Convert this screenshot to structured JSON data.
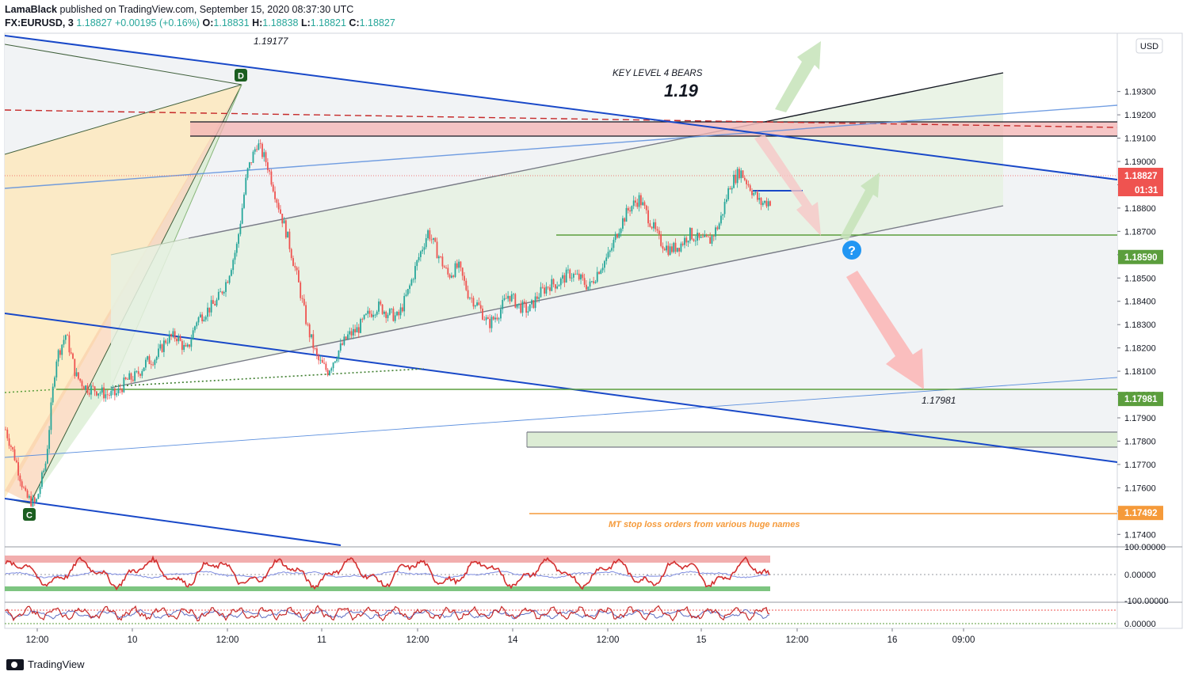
{
  "header": {
    "author": "LamaBlack",
    "published_text": "published on TradingView.com, September 15, 2020 08:37:30 UTC",
    "symbol": "FX:EURUSD, 3",
    "last": "1.18827",
    "change": "+0.00195 (+0.16%)",
    "o_label": "O:",
    "o": "1.18831",
    "h_label": "H:",
    "h": "1.18838",
    "l_label": "L:",
    "l": "1.18821",
    "c_label": "C:",
    "c": "1.18827"
  },
  "currency_button": "USD",
  "footer_brand": "TradingView",
  "colors": {
    "up": "#26a69a",
    "down": "#ef5350",
    "blue_line": "#1848c8",
    "green_line": "#5b9e3d",
    "orange_line": "#f59a3a",
    "red_zone": "#ef9a9a"
  },
  "chart_data": {
    "type": "candlestick",
    "symbol": "EURUSD",
    "timeframe": "3",
    "ylim": [
      1.1735,
      1.1955
    ],
    "price_ticks": [
      "1.17400",
      "1.17500",
      "1.17600",
      "1.17700",
      "1.17800",
      "1.17900",
      "1.18000",
      "1.18100",
      "1.18200",
      "1.18300",
      "1.18400",
      "1.18500",
      "1.18600",
      "1.18700",
      "1.18800",
      "1.18900",
      "1.19000",
      "1.19100",
      "1.19200",
      "1.19300"
    ],
    "time_ticks": [
      "12:00",
      "10",
      "12:00",
      "11",
      "12:00",
      "14",
      "12:00",
      "15",
      "12:00",
      "16",
      "09:00"
    ],
    "current_price": "1.18827",
    "countdown": "01:31",
    "price_levels": [
      {
        "label": "1.18590",
        "value": 1.1859,
        "color": "#5b9e3d"
      },
      {
        "label": "1.17981",
        "value": 1.17981,
        "color": "#5b9e3d"
      },
      {
        "label": "1.17492",
        "value": 1.17492,
        "color": "#f59a3a"
      }
    ],
    "price_path": [
      [
        0,
        1.1785
      ],
      [
        2,
        1.1772
      ],
      [
        4,
        1.1756
      ],
      [
        6,
        1.1753
      ],
      [
        8,
        1.1771
      ],
      [
        10,
        1.1815
      ],
      [
        12,
        1.1826
      ],
      [
        14,
        1.1808
      ],
      [
        16,
        1.1803
      ],
      [
        18,
        1.1802
      ],
      [
        20,
        1.18
      ],
      [
        22,
        1.18
      ],
      [
        24,
        1.1806
      ],
      [
        26,
        1.1808
      ],
      [
        28,
        1.1814
      ],
      [
        30,
        1.1816
      ],
      [
        32,
        1.1824
      ],
      [
        34,
        1.1825
      ],
      [
        36,
        1.1818
      ],
      [
        38,
        1.1832
      ],
      [
        40,
        1.1836
      ],
      [
        42,
        1.184
      ],
      [
        44,
        1.1849
      ],
      [
        46,
        1.1864
      ],
      [
        48,
        1.1895
      ],
      [
        50,
        1.1908
      ],
      [
        52,
        1.1899
      ],
      [
        54,
        1.1883
      ],
      [
        56,
        1.1868
      ],
      [
        58,
        1.185
      ],
      [
        60,
        1.1829
      ],
      [
        62,
        1.1815
      ],
      [
        64,
        1.181
      ],
      [
        66,
        1.1818
      ],
      [
        68,
        1.1825
      ],
      [
        70,
        1.1828
      ],
      [
        72,
        1.1834
      ],
      [
        74,
        1.1838
      ],
      [
        76,
        1.1835
      ],
      [
        78,
        1.1833
      ],
      [
        80,
        1.1844
      ],
      [
        82,
        1.1858
      ],
      [
        84,
        1.187
      ],
      [
        86,
        1.186
      ],
      [
        88,
        1.1851
      ],
      [
        90,
        1.1855
      ],
      [
        92,
        1.1843
      ],
      [
        94,
        1.1838
      ],
      [
        96,
        1.183
      ],
      [
        98,
        1.1835
      ],
      [
        100,
        1.1843
      ],
      [
        102,
        1.1838
      ],
      [
        104,
        1.1836
      ],
      [
        106,
        1.1843
      ],
      [
        108,
        1.1847
      ],
      [
        110,
        1.1848
      ],
      [
        112,
        1.1852
      ],
      [
        114,
        1.185
      ],
      [
        116,
        1.1846
      ],
      [
        118,
        1.1854
      ],
      [
        120,
        1.186
      ],
      [
        122,
        1.1872
      ],
      [
        124,
        1.188
      ],
      [
        126,
        1.1884
      ],
      [
        128,
        1.1875
      ],
      [
        130,
        1.1866
      ],
      [
        132,
        1.1862
      ],
      [
        134,
        1.1864
      ],
      [
        136,
        1.1869
      ],
      [
        138,
        1.1866
      ],
      [
        140,
        1.1866
      ],
      [
        142,
        1.1874
      ],
      [
        144,
        1.189
      ],
      [
        146,
        1.1896
      ],
      [
        148,
        1.1889
      ],
      [
        150,
        1.1882
      ],
      [
        152,
        1.1883
      ]
    ],
    "annotations": [
      {
        "text": "1.19177",
        "kind": "price_note"
      },
      {
        "text": "KEY LEVEL 4 BEARS",
        "kind": "note"
      },
      {
        "text": "1.19",
        "kind": "note_large"
      },
      {
        "text": "1.17981",
        "kind": "price_note"
      },
      {
        "text": "MT stop loss orders from various huge names",
        "kind": "note_orange"
      },
      {
        "text": "D",
        "kind": "pattern_point"
      },
      {
        "text": "C",
        "kind": "pattern_point"
      }
    ],
    "indicators": [
      {
        "name": "oscillator_1",
        "ticks": [
          "100.00000",
          "0.00000",
          "-100.00000"
        ]
      },
      {
        "name": "oscillator_2",
        "ticks": [
          "0.00000"
        ]
      }
    ]
  }
}
